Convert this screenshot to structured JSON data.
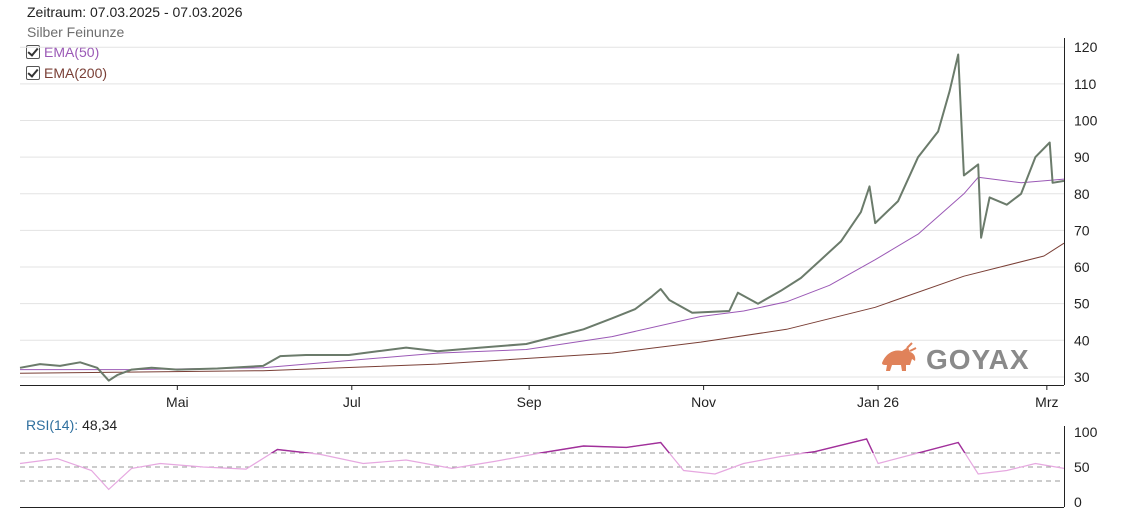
{
  "header": {
    "period": "Zeitraum: 07.03.2025 - 07.03.2026",
    "instrument": "Silber Feinunze"
  },
  "legend": [
    {
      "label": "EMA(50)",
      "checked": true,
      "color": "#9b59b6"
    },
    {
      "label": "EMA(200)",
      "checked": true,
      "color": "#7a3f36"
    }
  ],
  "rsi": {
    "label": "RSI(14):",
    "value": "48,34",
    "yticks": [
      "100",
      "50",
      "0"
    ],
    "levels": [
      30,
      50,
      70
    ]
  },
  "brand": {
    "logo_text": "GOYAX",
    "icon": "bull-icon",
    "color": "#e0825a"
  },
  "colors": {
    "price": "#6b7b6b",
    "ema50": "#9b59b6",
    "ema200": "#7a3f36",
    "rsi": "#a0309a",
    "rsi_faint": "#e6a8e0"
  },
  "chart_data": [
    {
      "type": "line",
      "title": "",
      "ylim": [
        28,
        122
      ],
      "yticks": [
        "30",
        "40",
        "50",
        "60",
        "70",
        "80",
        "90",
        "100",
        "110",
        "120"
      ],
      "xticks": [
        "Mai",
        "Jul",
        "Sep",
        "Nov",
        "Jan 26",
        "Mrz"
      ],
      "grid": true,
      "y_axis_side": "right",
      "series": [
        {
          "name": "Silber Feinunze",
          "points": [
            [
              "2025-03-07",
              32.5
            ],
            [
              "2025-03-14",
              33.5
            ],
            [
              "2025-03-21",
              33.0
            ],
            [
              "2025-03-28",
              34.0
            ],
            [
              "2025-04-03",
              32.5
            ],
            [
              "2025-04-07",
              29.0
            ],
            [
              "2025-04-10",
              30.5
            ],
            [
              "2025-04-15",
              32.0
            ],
            [
              "2025-04-22",
              32.5
            ],
            [
              "2025-05-01",
              32.0
            ],
            [
              "2025-05-15",
              32.3
            ],
            [
              "2025-05-31",
              33.0
            ],
            [
              "2025-06-06",
              35.7
            ],
            [
              "2025-06-15",
              36.0
            ],
            [
              "2025-06-30",
              36.0
            ],
            [
              "2025-07-10",
              37.0
            ],
            [
              "2025-07-20",
              38.0
            ],
            [
              "2025-07-31",
              37.0
            ],
            [
              "2025-08-15",
              38.0
            ],
            [
              "2025-08-31",
              39.0
            ],
            [
              "2025-09-10",
              41.0
            ],
            [
              "2025-09-20",
              43.0
            ],
            [
              "2025-09-30",
              46.0
            ],
            [
              "2025-10-08",
              48.5
            ],
            [
              "2025-10-14",
              52.0
            ],
            [
              "2025-10-17",
              54.0
            ],
            [
              "2025-10-20",
              51.0
            ],
            [
              "2025-10-28",
              47.5
            ],
            [
              "2025-11-10",
              48.0
            ],
            [
              "2025-11-13",
              53.0
            ],
            [
              "2025-11-20",
              50.0
            ],
            [
              "2025-11-28",
              53.5
            ],
            [
              "2025-12-05",
              57.0
            ],
            [
              "2025-12-12",
              62.0
            ],
            [
              "2025-12-19",
              67.0
            ],
            [
              "2025-12-26",
              75.0
            ],
            [
              "2025-12-29",
              82.0
            ],
            [
              "2025-12-31",
              72.0
            ],
            [
              "2026-01-08",
              78.0
            ],
            [
              "2026-01-15",
              90.0
            ],
            [
              "2026-01-22",
              97.0
            ],
            [
              "2026-01-26",
              108.0
            ],
            [
              "2026-01-29",
              118.0
            ],
            [
              "2026-01-31",
              85.0
            ],
            [
              "2026-02-05",
              88.0
            ],
            [
              "2026-02-06",
              68.0
            ],
            [
              "2026-02-09",
              79.0
            ],
            [
              "2026-02-15",
              77.0
            ],
            [
              "2026-02-20",
              80.0
            ],
            [
              "2026-02-25",
              90.0
            ],
            [
              "2026-03-02",
              94.0
            ],
            [
              "2026-03-03",
              83.0
            ],
            [
              "2026-03-07",
              83.5
            ]
          ]
        },
        {
          "name": "EMA(50)",
          "points": [
            [
              "2025-03-07",
              32.0
            ],
            [
              "2025-04-15",
              32.0
            ],
            [
              "2025-05-31",
              32.5
            ],
            [
              "2025-06-30",
              34.5
            ],
            [
              "2025-07-31",
              36.5
            ],
            [
              "2025-08-31",
              37.5
            ],
            [
              "2025-09-30",
              41.0
            ],
            [
              "2025-10-31",
              46.5
            ],
            [
              "2025-11-15",
              48.0
            ],
            [
              "2025-11-30",
              50.5
            ],
            [
              "2025-12-15",
              55.0
            ],
            [
              "2025-12-31",
              62.0
            ],
            [
              "2026-01-15",
              69.0
            ],
            [
              "2026-01-31",
              80.0
            ],
            [
              "2026-02-05",
              84.5
            ],
            [
              "2026-02-20",
              83.0
            ],
            [
              "2026-03-07",
              84.0
            ]
          ]
        },
        {
          "name": "EMA(200)",
          "points": [
            [
              "2025-03-07",
              31.0
            ],
            [
              "2025-05-31",
              31.7
            ],
            [
              "2025-07-31",
              33.5
            ],
            [
              "2025-09-30",
              36.5
            ],
            [
              "2025-10-31",
              39.5
            ],
            [
              "2025-11-30",
              43.0
            ],
            [
              "2025-12-31",
              49.0
            ],
            [
              "2026-01-31",
              57.5
            ],
            [
              "2026-02-28",
              63.0
            ],
            [
              "2026-03-07",
              66.5
            ]
          ]
        }
      ]
    },
    {
      "type": "line",
      "title": "RSI(14)",
      "ylim": [
        0,
        100
      ],
      "yticks": [
        "100",
        "50",
        "0"
      ],
      "series": [
        {
          "name": "RSI(14)",
          "points": [
            [
              "2025-03-07",
              55
            ],
            [
              "2025-03-20",
              62
            ],
            [
              "2025-04-01",
              45
            ],
            [
              "2025-04-07",
              18
            ],
            [
              "2025-04-15",
              48
            ],
            [
              "2025-04-25",
              55
            ],
            [
              "2025-05-10",
              50
            ],
            [
              "2025-05-25",
              47
            ],
            [
              "2025-06-05",
              75
            ],
            [
              "2025-06-20",
              68
            ],
            [
              "2025-07-05",
              55
            ],
            [
              "2025-07-20",
              60
            ],
            [
              "2025-08-05",
              48
            ],
            [
              "2025-08-20",
              58
            ],
            [
              "2025-09-05",
              70
            ],
            [
              "2025-09-20",
              80
            ],
            [
              "2025-10-05",
              78
            ],
            [
              "2025-10-17",
              85
            ],
            [
              "2025-10-25",
              45
            ],
            [
              "2025-11-05",
              40
            ],
            [
              "2025-11-15",
              55
            ],
            [
              "2025-11-28",
              65
            ],
            [
              "2025-12-10",
              72
            ],
            [
              "2025-12-28",
              90
            ],
            [
              "2026-01-01",
              55
            ],
            [
              "2026-01-15",
              70
            ],
            [
              "2026-01-29",
              85
            ],
            [
              "2026-02-05",
              40
            ],
            [
              "2026-02-15",
              45
            ],
            [
              "2026-02-25",
              55
            ],
            [
              "2026-03-07",
              48
            ]
          ]
        }
      ]
    }
  ]
}
